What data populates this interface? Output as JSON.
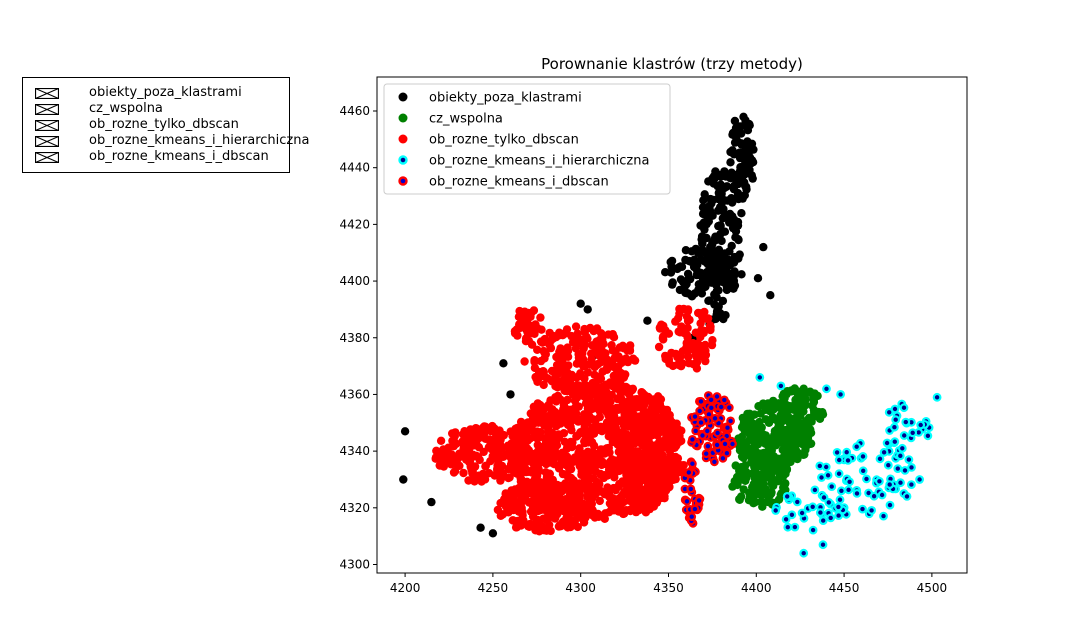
{
  "outer_legend": {
    "entries": [
      "obiekty_poza_klastrami",
      "cz_wspolna",
      "ob_rozne_tylko_dbscan",
      "ob_rozne_kmeans_i_hierarchiczna",
      "ob_rozne_kmeans_i_dbscan"
    ]
  },
  "chart_data": {
    "type": "scatter",
    "title": "Porownanie klastrów (trzy metody)",
    "xlabel": "",
    "ylabel": "",
    "xlim": [
      4184,
      4520
    ],
    "ylim": [
      4297,
      4472
    ],
    "xticks": [
      4200,
      4250,
      4300,
      4350,
      4400,
      4450,
      4500
    ],
    "yticks": [
      4300,
      4320,
      4340,
      4360,
      4380,
      4400,
      4420,
      4440,
      4460
    ],
    "grid": false,
    "legend_position": "top-left",
    "series": [
      {
        "name": "obiekty_poza_klastrami",
        "color": "#000000",
        "edge": "#000000",
        "regions": [
          {
            "cx": 4380,
            "cy": 4418,
            "rx": 12,
            "ry": 22,
            "n": 160
          },
          {
            "cx": 4392,
            "cy": 4444,
            "rx": 7,
            "ry": 16,
            "n": 70
          },
          {
            "cx": 4370,
            "cy": 4403,
            "rx": 22,
            "ry": 9,
            "n": 90
          },
          {
            "cx": 4376,
            "cy": 4390,
            "rx": 8,
            "ry": 6,
            "n": 18
          }
        ],
        "extra": [
          [
            4200,
            4347
          ],
          [
            4199,
            4330
          ],
          [
            4215,
            4322
          ],
          [
            4243,
            4313
          ],
          [
            4250,
            4311
          ],
          [
            4256,
            4371
          ],
          [
            4260,
            4360
          ],
          [
            4269,
            4383
          ],
          [
            4300,
            4392
          ],
          [
            4304,
            4390
          ],
          [
            4308,
            4374
          ],
          [
            4338,
            4386
          ],
          [
            4342,
            4355
          ],
          [
            4364,
            4380
          ],
          [
            4401,
            4401
          ],
          [
            4408,
            4395
          ],
          [
            4404,
            4412
          ]
        ]
      },
      {
        "name": "cz_wspolna",
        "color": "#008000",
        "edge": "#008000",
        "regions": [
          {
            "cx": 4410,
            "cy": 4345,
            "rx": 22,
            "ry": 13,
            "n": 240
          },
          {
            "cx": 4402,
            "cy": 4330,
            "rx": 17,
            "ry": 10,
            "n": 120
          },
          {
            "cx": 4425,
            "cy": 4354,
            "rx": 14,
            "ry": 9,
            "n": 80
          }
        ],
        "extra": []
      },
      {
        "name": "ob_rozne_tylko_dbscan",
        "color": "#ff0000",
        "edge": "#ff0000",
        "regions": [
          {
            "cx": 4310,
            "cy": 4340,
            "rx": 50,
            "ry": 24,
            "n": 900
          },
          {
            "cx": 4245,
            "cy": 4339,
            "rx": 28,
            "ry": 10,
            "n": 200
          },
          {
            "cx": 4300,
            "cy": 4372,
            "rx": 32,
            "ry": 12,
            "n": 220
          },
          {
            "cx": 4280,
            "cy": 4320,
            "rx": 28,
            "ry": 9,
            "n": 200
          },
          {
            "cx": 4360,
            "cy": 4380,
            "rx": 16,
            "ry": 12,
            "n": 90
          },
          {
            "cx": 4270,
            "cy": 4384,
            "rx": 8,
            "ry": 7,
            "n": 40
          },
          {
            "cx": 4338,
            "cy": 4340,
            "rx": 16,
            "ry": 22,
            "n": 250
          }
        ],
        "extra": []
      },
      {
        "name": "ob_rozne_kmeans_i_hierarchiczna",
        "color": "#00008b",
        "edge": "#00ffff",
        "regions": [
          {
            "cx": 4462,
            "cy": 4330,
            "rx": 30,
            "ry": 14,
            "n": 60
          },
          {
            "cx": 4485,
            "cy": 4345,
            "rx": 14,
            "ry": 12,
            "n": 30
          },
          {
            "cx": 4430,
            "cy": 4318,
            "rx": 20,
            "ry": 8,
            "n": 30
          }
        ],
        "extra": [
          [
            4427,
            4304
          ],
          [
            4438,
            4307
          ],
          [
            4402,
            4366
          ],
          [
            4414,
            4363
          ],
          [
            4440,
            4362
          ],
          [
            4448,
            4360
          ],
          [
            4503,
            4359
          ],
          [
            4493,
            4330
          ]
        ]
      },
      {
        "name": "ob_rozne_kmeans_i_dbscan",
        "color": "#0000cd",
        "edge": "#ff0000",
        "regions": [
          {
            "cx": 4375,
            "cy": 4348,
            "rx": 13,
            "ry": 12,
            "n": 90
          },
          {
            "cx": 4363,
            "cy": 4325,
            "rx": 5,
            "ry": 12,
            "n": 35
          }
        ],
        "extra": []
      }
    ]
  }
}
